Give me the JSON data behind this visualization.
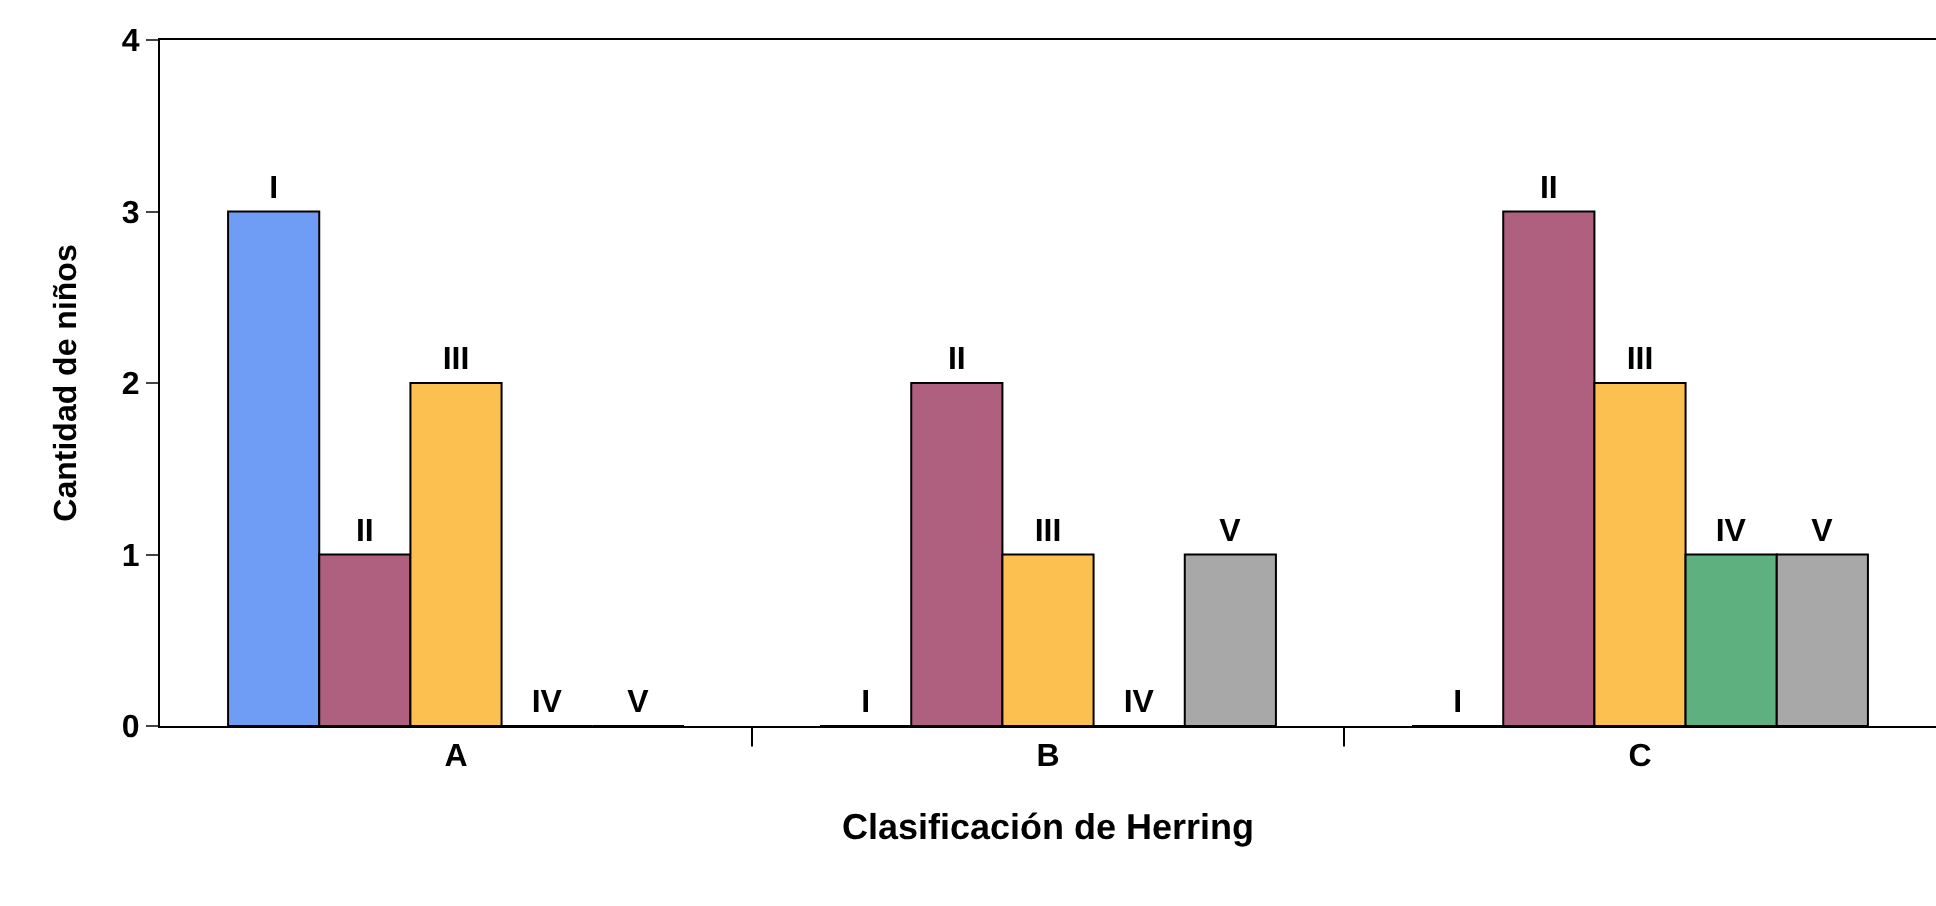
{
  "chart_data": {
    "type": "bar",
    "xlabel": "Clasificación de Herring",
    "ylabel": "Cantidad de niños",
    "categories": [
      "A",
      "B",
      "C"
    ],
    "series": [
      {
        "name": "I",
        "color": "#6f9cf5",
        "values": [
          3,
          0,
          0
        ]
      },
      {
        "name": "II",
        "color": "#b0607f",
        "values": [
          1,
          2,
          3
        ]
      },
      {
        "name": "III",
        "color": "#fcc050",
        "values": [
          2,
          1,
          2
        ]
      },
      {
        "name": "IV",
        "color": "#5fb07f",
        "values": [
          0,
          0,
          1
        ]
      },
      {
        "name": "V",
        "color": "#a8a8a8",
        "values": [
          0,
          1,
          1
        ]
      }
    ],
    "ylim": [
      0,
      4
    ],
    "yticks": [
      0,
      1,
      2,
      3,
      4
    ],
    "grid": false,
    "legend": false
  }
}
